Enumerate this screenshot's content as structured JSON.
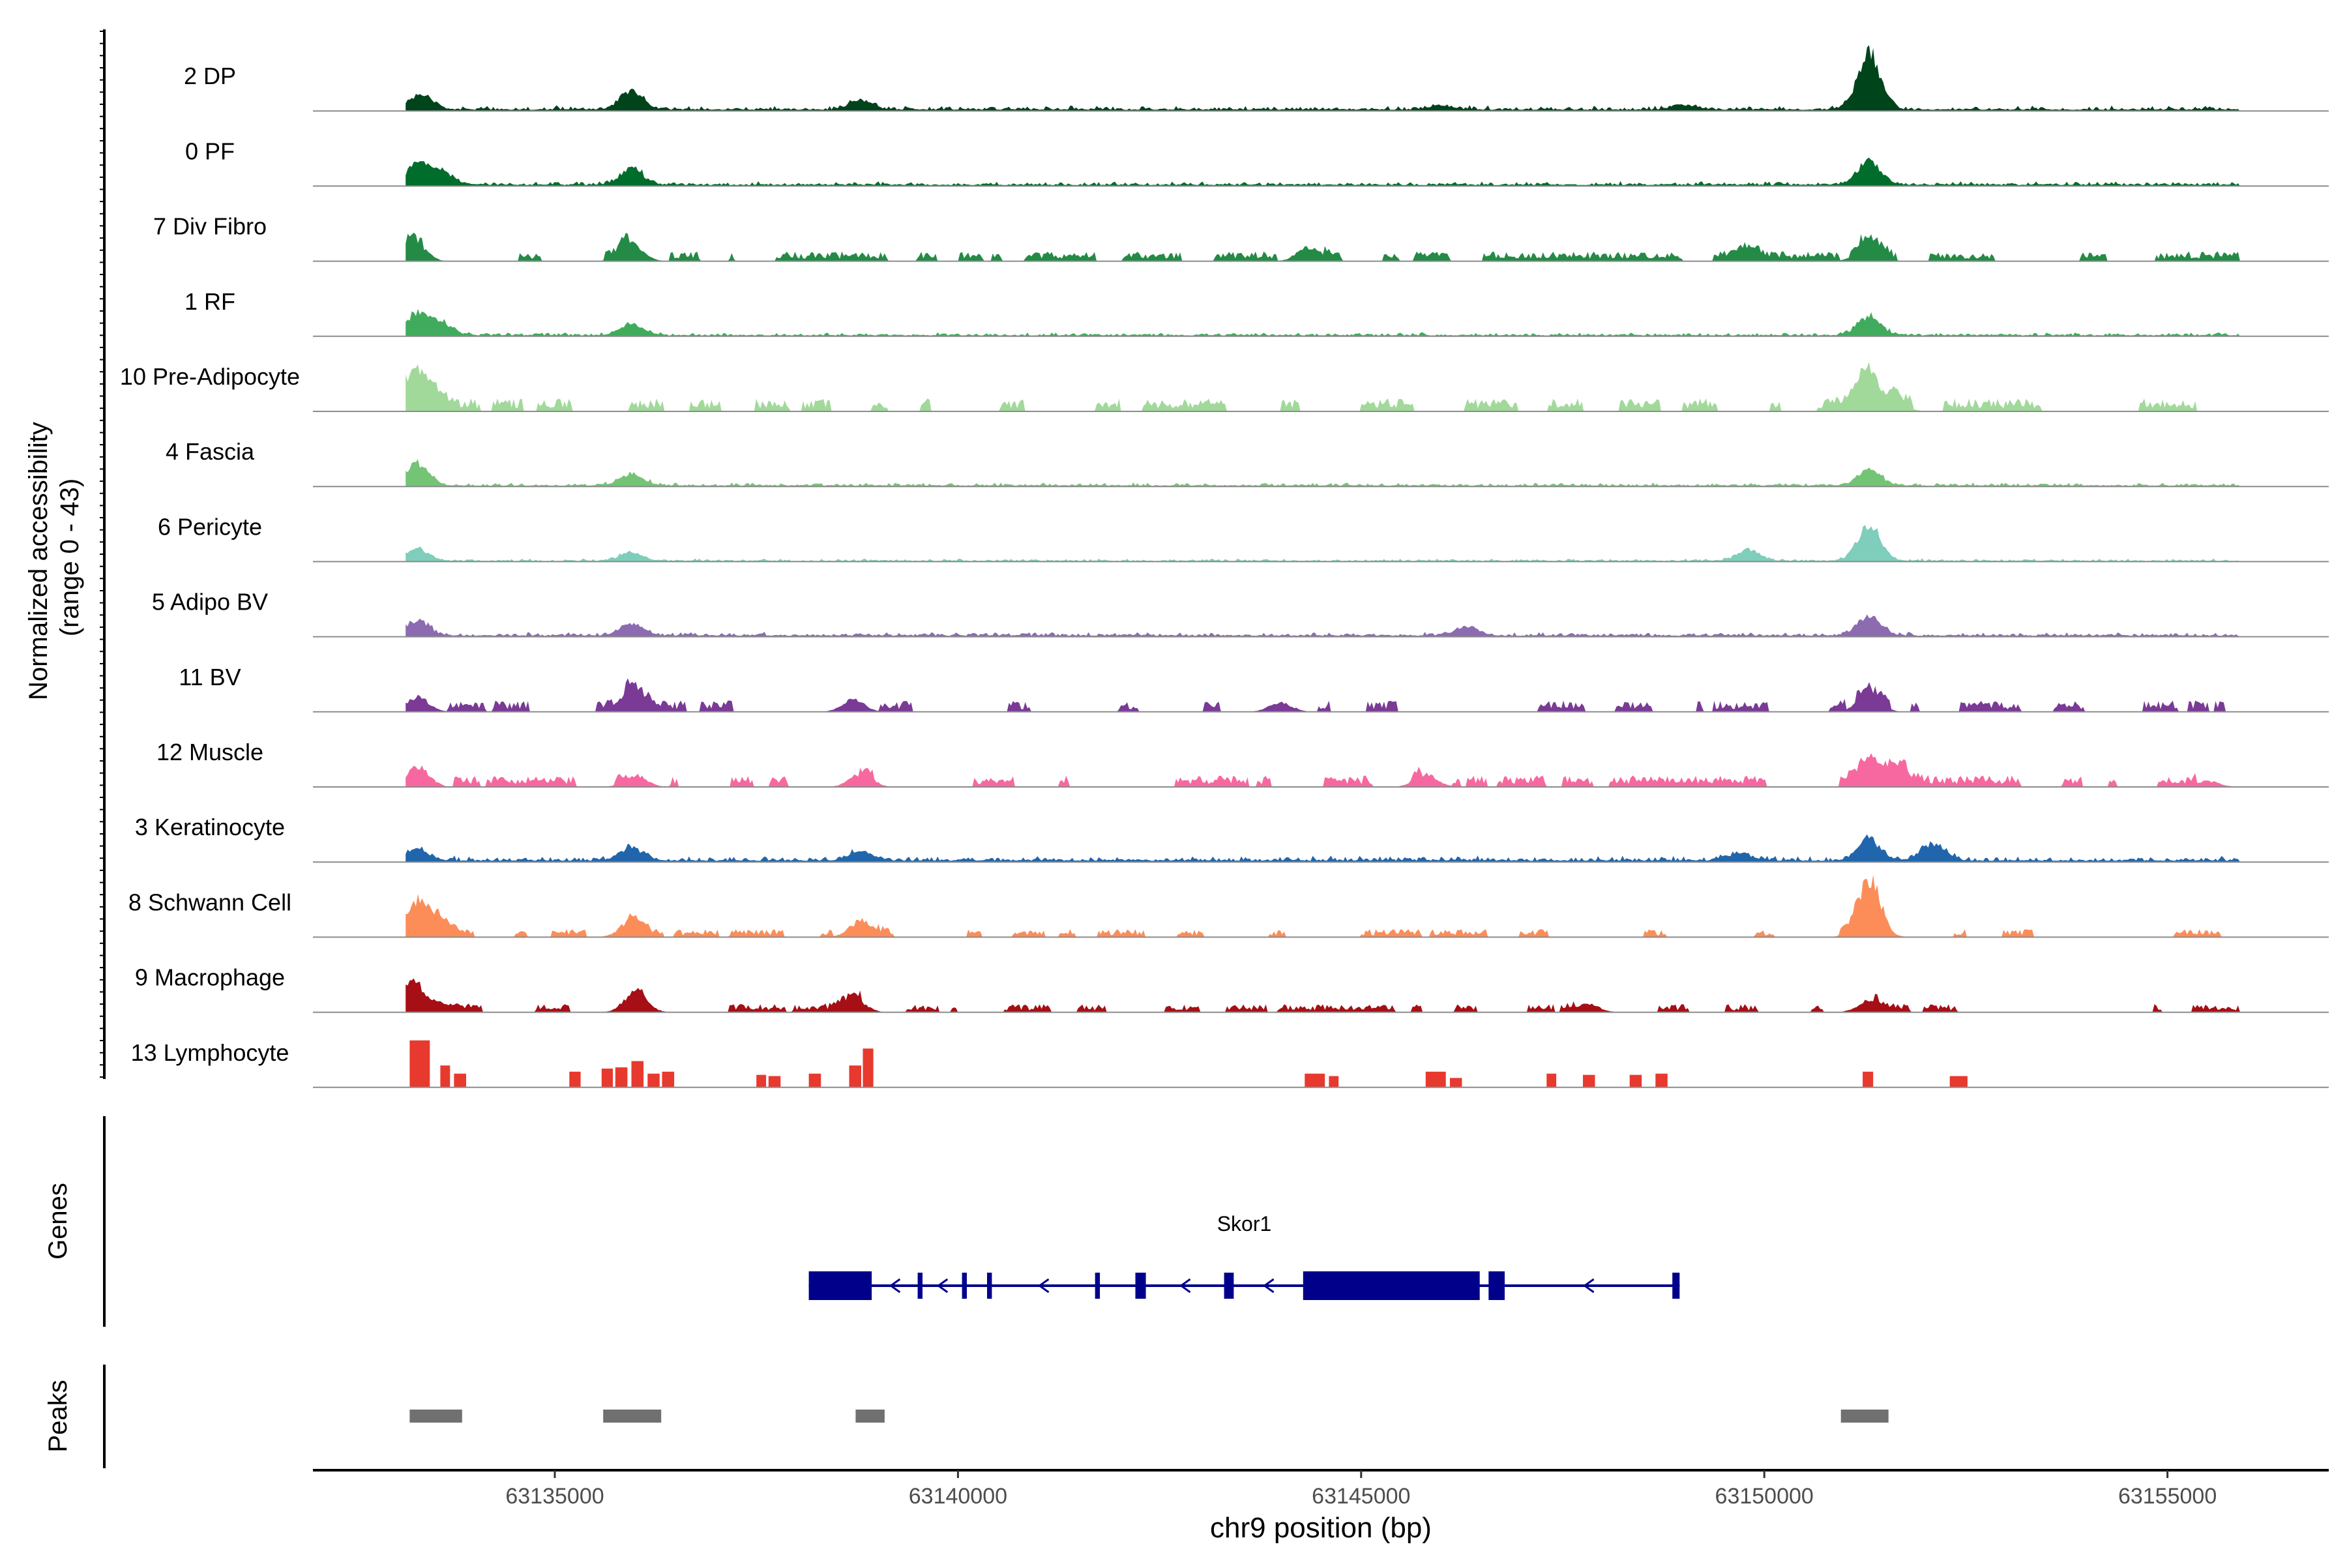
{
  "chart_data": {
    "type": "area",
    "title": "",
    "track_ylabel_line1": "Normalized accessibility",
    "track_ylabel_line2": "(range 0 - 43)",
    "genes_label": "Genes",
    "peaks_label": "Peaks",
    "xlabel": "chr9 position (bp)",
    "xlim": [
      63132000,
      63157000
    ],
    "xticks": [
      63135000,
      63140000,
      63145000,
      63150000,
      63155000
    ],
    "xtick_labels": [
      "63135000",
      "63140000",
      "63145000",
      "63150000",
      "63155000"
    ],
    "ylim": [
      0,
      43
    ],
    "tracks": [
      {
        "name": "2 DP",
        "color": "#00441b",
        "mode": "dense",
        "base": 0.07,
        "peaks": [
          [
            63133350,
            0.25
          ],
          [
            63135950,
            0.32
          ],
          [
            63138800,
            0.16
          ],
          [
            63151300,
            0.95
          ],
          [
            63146000,
            0.07
          ],
          [
            63149000,
            0.08
          ]
        ]
      },
      {
        "name": "0 PF",
        "color": "#006d2c",
        "mode": "dense",
        "base": 0.06,
        "peaks": [
          [
            63133300,
            0.35
          ],
          [
            63133600,
            0.22
          ],
          [
            63135950,
            0.28
          ],
          [
            63151300,
            0.42
          ]
        ]
      },
      {
        "name": "7 Div Fibro",
        "color": "#238b45",
        "mode": "patchy",
        "coverage": 0.55,
        "noise": 0.12,
        "peaks": [
          [
            63133250,
            0.35
          ],
          [
            63135950,
            0.32
          ],
          [
            63144350,
            0.25
          ],
          [
            63149800,
            0.18
          ],
          [
            63151300,
            0.35
          ]
        ]
      },
      {
        "name": "1 RF",
        "color": "#41ab5d",
        "mode": "dense",
        "base": 0.05,
        "peaks": [
          [
            63133300,
            0.38
          ],
          [
            63133600,
            0.18
          ],
          [
            63135950,
            0.18
          ],
          [
            63151300,
            0.32
          ]
        ]
      },
      {
        "name": "10 Pre-Adipocyte",
        "color": "#a1d99b",
        "mode": "patchy",
        "coverage": 0.45,
        "noise": 0.16,
        "peaks": [
          [
            63133250,
            0.55
          ],
          [
            63133500,
            0.22
          ],
          [
            63151250,
            0.78
          ],
          [
            63151600,
            0.2
          ]
        ]
      },
      {
        "name": "4 Fascia",
        "color": "#74c476",
        "mode": "dense",
        "base": 0.05,
        "peaks": [
          [
            63133300,
            0.38
          ],
          [
            63135950,
            0.2
          ],
          [
            63151300,
            0.28
          ]
        ]
      },
      {
        "name": "6 Pericyte",
        "color": "#7fcdbb",
        "mode": "dense",
        "base": 0.04,
        "peaks": [
          [
            63133300,
            0.2
          ],
          [
            63135950,
            0.14
          ],
          [
            63149800,
            0.18
          ],
          [
            63151300,
            0.58
          ]
        ]
      },
      {
        "name": "5 Adipo BV",
        "color": "#8c6bb1",
        "mode": "dense",
        "base": 0.06,
        "peaks": [
          [
            63133300,
            0.25
          ],
          [
            63135950,
            0.22
          ],
          [
            63151300,
            0.32
          ],
          [
            63146300,
            0.15
          ]
        ]
      },
      {
        "name": "11 BV",
        "color": "#7a3a96",
        "mode": "patchy",
        "coverage": 0.42,
        "noise": 0.14,
        "peaks": [
          [
            63133300,
            0.25
          ],
          [
            63135950,
            0.4
          ],
          [
            63138700,
            0.2
          ],
          [
            63144000,
            0.16
          ],
          [
            63151300,
            0.3
          ]
        ]
      },
      {
        "name": "12 Muscle",
        "color": "#f768a1",
        "mode": "patchy",
        "coverage": 0.4,
        "noise": 0.14,
        "peaks": [
          [
            63133300,
            0.35
          ],
          [
            63136000,
            0.2
          ],
          [
            63138800,
            0.22
          ],
          [
            63145800,
            0.22
          ],
          [
            63151300,
            0.55
          ],
          [
            63151700,
            0.3
          ],
          [
            63155500,
            0.1
          ]
        ]
      },
      {
        "name": "3 Keratinocyte",
        "color": "#2166ac",
        "mode": "dense",
        "base": 0.08,
        "peaks": [
          [
            63133300,
            0.18
          ],
          [
            63135950,
            0.22
          ],
          [
            63138800,
            0.15
          ],
          [
            63151300,
            0.35
          ],
          [
            63152100,
            0.3
          ],
          [
            63149700,
            0.12
          ]
        ]
      },
      {
        "name": "8 Schwann Cell",
        "color": "#fc8d59",
        "mode": "patchy",
        "coverage": 0.5,
        "noise": 0.1,
        "peaks": [
          [
            63133250,
            0.55
          ],
          [
            63133550,
            0.28
          ],
          [
            63135950,
            0.28
          ],
          [
            63138800,
            0.28
          ],
          [
            63151300,
            1.0
          ]
        ]
      },
      {
        "name": "9 Macrophage",
        "color": "#a50f15",
        "mode": "patchy",
        "coverage": 0.45,
        "noise": 0.1,
        "peaks": [
          [
            63133250,
            0.45
          ],
          [
            63133600,
            0.15
          ],
          [
            63136000,
            0.35
          ],
          [
            63138700,
            0.25
          ],
          [
            63147800,
            0.15
          ],
          [
            63151300,
            0.2
          ]
        ]
      },
      {
        "name": "13 Lymphocyte",
        "color": "#e8392e",
        "mode": "blocks",
        "blocks": [
          [
            63133200,
            63133450,
            0.75
          ],
          [
            63133580,
            63133700,
            0.35
          ],
          [
            63133750,
            63133900,
            0.22
          ],
          [
            63135180,
            63135320,
            0.25
          ],
          [
            63135580,
            63135720,
            0.3
          ],
          [
            63135750,
            63135900,
            0.32
          ],
          [
            63135950,
            63136100,
            0.42
          ],
          [
            63136150,
            63136300,
            0.22
          ],
          [
            63136330,
            63136480,
            0.25
          ],
          [
            63137500,
            63137620,
            0.2
          ],
          [
            63137650,
            63137800,
            0.18
          ],
          [
            63138150,
            63138300,
            0.22
          ],
          [
            63138650,
            63138800,
            0.35
          ],
          [
            63138820,
            63138950,
            0.62
          ],
          [
            63144300,
            63144550,
            0.22
          ],
          [
            63144600,
            63144720,
            0.18
          ],
          [
            63145800,
            63146050,
            0.25
          ],
          [
            63146100,
            63146250,
            0.15
          ],
          [
            63147300,
            63147420,
            0.22
          ],
          [
            63147750,
            63147900,
            0.2
          ],
          [
            63148330,
            63148480,
            0.2
          ],
          [
            63148650,
            63148800,
            0.22
          ],
          [
            63151220,
            63151350,
            0.25
          ],
          [
            63152300,
            63152520,
            0.18
          ]
        ]
      }
    ],
    "gene": {
      "name": "Skor1",
      "start": 63138150,
      "end": 63148950,
      "strand": "-",
      "color": "#00008b",
      "exons": [
        [
          63138150,
          63138930,
          "thick"
        ],
        [
          63139500,
          63139560,
          "thin"
        ],
        [
          63140050,
          63140110,
          "thin"
        ],
        [
          63140360,
          63140420,
          "thin"
        ],
        [
          63141700,
          63141760,
          "thin"
        ],
        [
          63142200,
          63142330,
          "thin"
        ],
        [
          63143300,
          63143420,
          "thin"
        ],
        [
          63144280,
          63146470,
          "thick"
        ],
        [
          63146580,
          63146780,
          "thick"
        ],
        [
          63148860,
          63148950,
          "thin"
        ]
      ]
    },
    "peaks": [
      [
        63133200,
        63133850
      ],
      [
        63135600,
        63136320
      ],
      [
        63138730,
        63139090
      ],
      [
        63150950,
        63151540
      ]
    ],
    "peak_color": "#707070"
  }
}
